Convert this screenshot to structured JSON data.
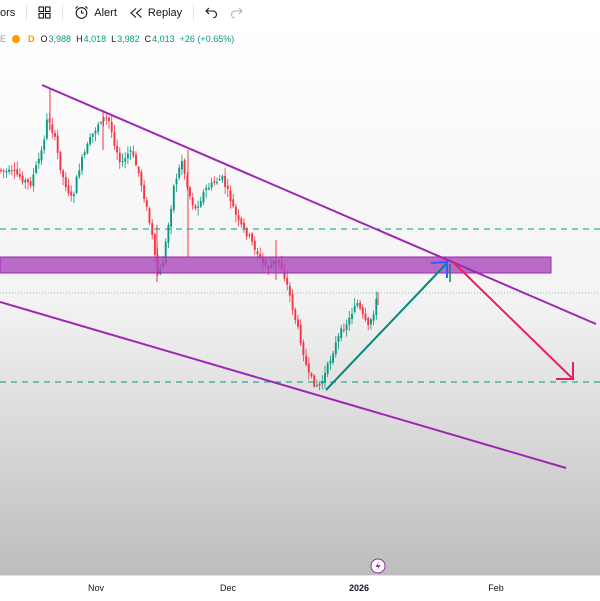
{
  "toolbar": {
    "indicators_label_fragment": "ors",
    "alert_label": "Alert",
    "replay_label": "Replay"
  },
  "legend": {
    "open_key": "O",
    "open_value": "3,988",
    "high_key": "H",
    "high_value": "4,018",
    "low_key": "L",
    "low_value": "3,982",
    "close_key": "C",
    "close_value": "4,013",
    "change": "+26 (+0.65%)",
    "interval_badge": "D",
    "symbol_fragment": "E",
    "up_color": "#089981"
  },
  "time_axis": {
    "ticks": [
      {
        "label": "Nov",
        "bold": false
      },
      {
        "label": "Dec",
        "bold": false
      },
      {
        "label": "2026",
        "bold": true
      },
      {
        "label": "Feb",
        "bold": false
      }
    ]
  },
  "colors": {
    "up": "#089981",
    "down": "#f23645",
    "channel": "#9c27b0",
    "zone_fill": "#ab47bc",
    "arrow_up": "#00897b",
    "arrow_blue": "#2962ff",
    "arrow_down": "#e91e63",
    "dashed": "#089981"
  },
  "icons": [
    "grid-icon",
    "alarm-clock-icon",
    "replay-icon",
    "undo-icon",
    "redo-icon",
    "lightning-icon"
  ]
}
